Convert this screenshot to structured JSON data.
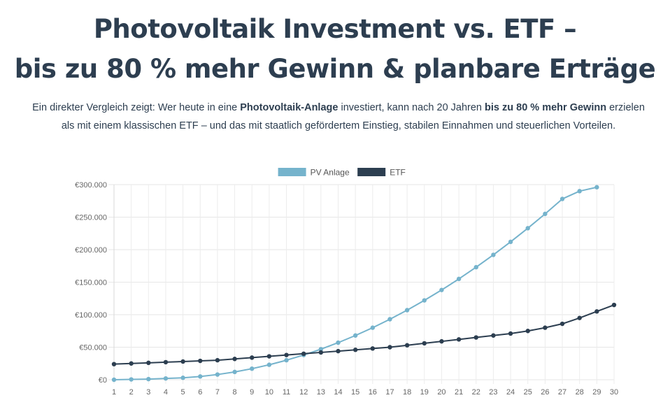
{
  "header": {
    "title_line1": "Photovoltaik Investment vs. ETF –",
    "title_line2": "bis zu 80 % mehr Gewinn & planbare Erträge"
  },
  "intro": {
    "line1_a": "Ein direkter Vergleich zeigt: Wer heute in eine ",
    "line1_b": "Photovoltaik-Anlage",
    "line1_c": " investiert, kann nach 20 Jahren ",
    "line1_d": "bis zu 80 % mehr Gewinn",
    "line1_e": " erzielen",
    "line2": "als mit einem klassischen ETF – und das mit staatlich gefördertem Einstieg, stabilen Einnahmen und steuerlichen Vorteilen."
  },
  "chart_data": {
    "type": "line",
    "x": [
      1,
      2,
      3,
      4,
      5,
      6,
      7,
      8,
      9,
      10,
      11,
      12,
      13,
      14,
      15,
      16,
      17,
      18,
      19,
      20,
      21,
      22,
      23,
      24,
      25,
      26,
      27,
      28,
      29,
      30
    ],
    "y_ticks": [
      "€0",
      "€50.000",
      "€100.000",
      "€150.000",
      "€200.000",
      "€250.000",
      "€300.000"
    ],
    "ylim": [
      0,
      300000
    ],
    "grid": true,
    "legend_position": "top-center",
    "series": [
      {
        "name": "PV Anlage",
        "color": "#75b3cc",
        "values": [
          0,
          500,
          1000,
          2000,
          3000,
          5000,
          8000,
          12000,
          17000,
          23000,
          30000,
          38000,
          47000,
          57000,
          68000,
          80000,
          93000,
          107000,
          122000,
          138000,
          155000,
          173000,
          192000,
          212000,
          233000,
          255000,
          278000,
          290000,
          296000,
          null
        ]
      },
      {
        "name": "ETF",
        "color": "#2c3e50",
        "values": [
          24000,
          25000,
          26000,
          27000,
          28000,
          29000,
          30000,
          32000,
          34000,
          36000,
          38000,
          40000,
          42000,
          44000,
          46000,
          48000,
          50000,
          53000,
          56000,
          59000,
          62000,
          65000,
          68000,
          71000,
          75000,
          80000,
          86000,
          95000,
          105000,
          115000
        ]
      }
    ]
  }
}
